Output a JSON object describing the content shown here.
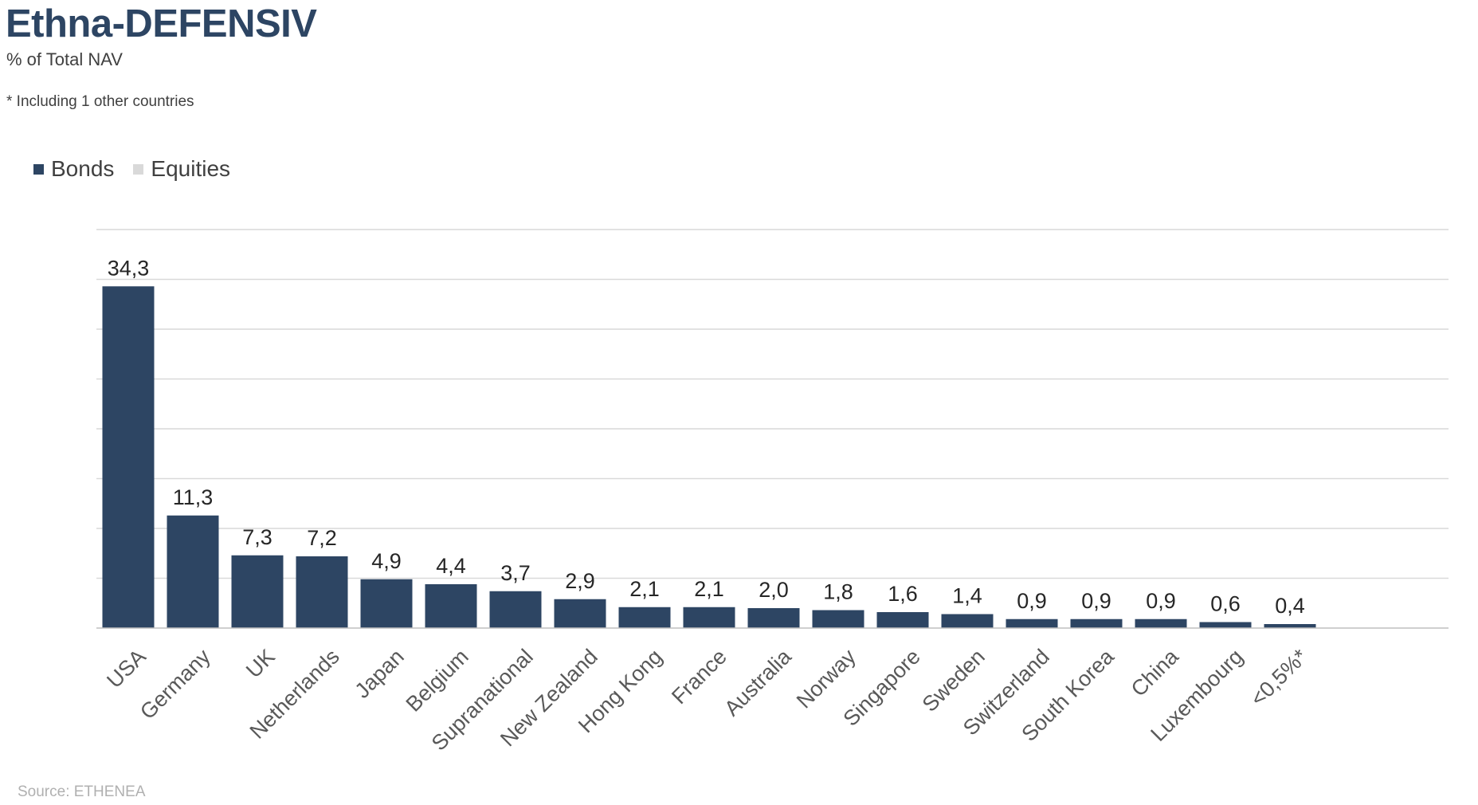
{
  "header": {
    "title": "Ethna-DEFENSIV",
    "subtitle": "% of Total NAV",
    "footnote": "* Including 1 other countries"
  },
  "legend": [
    {
      "label": "Bonds",
      "color": "#2d4563"
    },
    {
      "label": "Equities",
      "color": "#d9d9d9"
    }
  ],
  "source": "Source: ETHENEA",
  "chart_data": {
    "type": "bar",
    "title": "Ethna-DEFENSIV",
    "subtitle": "% of Total NAV",
    "xlabel": "",
    "ylabel": "",
    "categories": [
      "USA",
      "Germany",
      "UK",
      "Netherlands",
      "Japan",
      "Belgium",
      "Supranational",
      "New Zealand",
      "Hong Kong",
      "France",
      "Australia",
      "Norway",
      "Singapore",
      "Sweden",
      "Switzerland",
      "South Korea",
      "China",
      "Luxembourg",
      "<0,5%*"
    ],
    "series": [
      {
        "name": "Bonds",
        "color": "#2d4563",
        "values": [
          34.3,
          11.3,
          7.3,
          7.2,
          4.9,
          4.4,
          3.7,
          2.9,
          2.1,
          2.1,
          2.0,
          1.8,
          1.6,
          1.4,
          0.9,
          0.9,
          0.9,
          0.6,
          0.4
        ]
      },
      {
        "name": "Equities",
        "color": "#d9d9d9",
        "values": [
          0,
          0,
          0,
          0,
          0,
          0,
          0,
          0,
          0,
          0,
          0,
          0,
          0,
          0,
          0,
          0,
          0,
          0,
          0
        ]
      }
    ],
    "data_labels": [
      "34,3",
      "11,3",
      "7,3",
      "7,2",
      "4,9",
      "4,4",
      "3,7",
      "2,9",
      "2,1",
      "2,1",
      "2,0",
      "1,8",
      "1,6",
      "1,4",
      "0,9",
      "0,9",
      "0,9",
      "0,6",
      "0,4"
    ],
    "ylim": [
      0,
      40
    ],
    "y_gridline_step": 5,
    "grid": true,
    "y_axis_labels_visible": false,
    "legend_position": "top-left"
  }
}
